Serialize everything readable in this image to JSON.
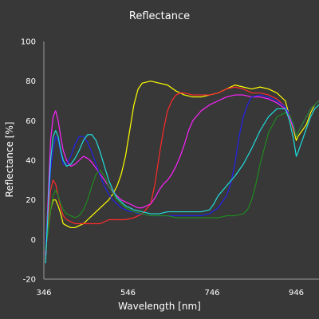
{
  "chart_data": {
    "type": "line",
    "title": "Reflectance",
    "xlabel": "Wavelength [nm]",
    "ylabel": "Reflectance [%]",
    "xlim": [
      346,
      1000
    ],
    "ylim": [
      -20,
      100
    ],
    "xticks": [
      346,
      546,
      746,
      946
    ],
    "yticks": [
      -20,
      0,
      20,
      40,
      60,
      80,
      100
    ],
    "grid": false,
    "legend": "none",
    "series": [
      {
        "color": "#ffff00",
        "x": [
          350,
          356,
          362,
          368,
          374,
          380,
          386,
          392,
          400,
          410,
          420,
          430,
          440,
          450,
          460,
          470,
          480,
          490,
          500,
          510,
          520,
          530,
          540,
          550,
          560,
          570,
          580,
          600,
          620,
          640,
          660,
          680,
          700,
          720,
          740,
          760,
          780,
          800,
          820,
          840,
          860,
          880,
          900,
          920,
          930,
          940,
          946,
          950,
          960,
          970,
          980,
          990,
          1000
        ],
        "y": [
          -5,
          5,
          15,
          20,
          20,
          17,
          13,
          8,
          7,
          6,
          6,
          7,
          8,
          10,
          12,
          14,
          16,
          18,
          20,
          23,
          27,
          33,
          42,
          55,
          68,
          76,
          79,
          80,
          79,
          78,
          75,
          73,
          72,
          72,
          73,
          74,
          76,
          78,
          77,
          76,
          77,
          76,
          74,
          70,
          62,
          55,
          50,
          52,
          55,
          58,
          64,
          68,
          70
        ]
      },
      {
        "color": "#ff2a2a",
        "x": [
          350,
          356,
          362,
          368,
          374,
          380,
          386,
          392,
          400,
          410,
          420,
          430,
          440,
          450,
          460,
          470,
          480,
          490,
          500,
          520,
          540,
          560,
          580,
          600,
          610,
          620,
          630,
          640,
          650,
          660,
          670,
          680,
          700,
          720,
          740,
          760,
          780,
          800,
          820,
          840,
          860,
          880,
          900,
          920,
          930,
          940,
          946,
          950,
          960,
          970,
          980,
          990,
          1000
        ],
        "y": [
          -10,
          10,
          25,
          30,
          28,
          22,
          16,
          12,
          10,
          9,
          8,
          8,
          8,
          8,
          8,
          8,
          8,
          9,
          10,
          10,
          10,
          11,
          13,
          18,
          28,
          42,
          55,
          65,
          70,
          73,
          74,
          74,
          73,
          73,
          73,
          74,
          76,
          77,
          76,
          74,
          74,
          73,
          71,
          67,
          62,
          56,
          52,
          54,
          58,
          62,
          66,
          68,
          70
        ]
      },
      {
        "color": "#ff22ff",
        "x": [
          350,
          356,
          362,
          368,
          374,
          380,
          386,
          392,
          400,
          410,
          420,
          430,
          440,
          450,
          460,
          470,
          480,
          490,
          500,
          510,
          520,
          530,
          540,
          550,
          560,
          570,
          580,
          590,
          600,
          610,
          620,
          630,
          640,
          650,
          660,
          670,
          680,
          690,
          700,
          720,
          740,
          760,
          780,
          800,
          820,
          840,
          860,
          880,
          900,
          920,
          930,
          940,
          946,
          950,
          960,
          970,
          980,
          990,
          1000
        ],
        "y": [
          -8,
          20,
          50,
          62,
          65,
          60,
          52,
          45,
          40,
          37,
          38,
          40,
          42,
          41,
          39,
          36,
          33,
          30,
          27,
          24,
          22,
          20,
          19,
          18,
          17,
          16,
          16,
          17,
          18,
          21,
          25,
          28,
          30,
          33,
          37,
          42,
          48,
          55,
          60,
          65,
          68,
          70,
          72,
          73,
          73,
          72,
          72,
          71,
          69,
          66,
          62,
          56,
          52,
          54,
          58,
          62,
          66,
          68,
          70
        ]
      },
      {
        "color": "#2222ee",
        "x": [
          350,
          356,
          362,
          368,
          374,
          380,
          386,
          392,
          400,
          410,
          420,
          430,
          440,
          450,
          460,
          470,
          480,
          490,
          500,
          510,
          520,
          530,
          540,
          550,
          560,
          570,
          580,
          600,
          620,
          640,
          660,
          680,
          700,
          720,
          740,
          760,
          780,
          790,
          800,
          810,
          820,
          830,
          840,
          860,
          880,
          900,
          920,
          930,
          940,
          946,
          950,
          960,
          970,
          980,
          990,
          1000
        ],
        "y": [
          -5,
          15,
          35,
          45,
          52,
          50,
          44,
          38,
          38,
          42,
          48,
          52,
          52,
          49,
          44,
          38,
          32,
          27,
          23,
          20,
          18,
          16,
          15,
          14,
          14,
          13,
          13,
          12,
          12,
          12,
          12,
          12,
          12,
          12,
          13,
          16,
          22,
          28,
          38,
          52,
          62,
          68,
          72,
          73,
          72,
          70,
          67,
          63,
          57,
          52,
          54,
          58,
          62,
          66,
          68,
          70
        ]
      },
      {
        "color": "#1f8a1f",
        "x": [
          350,
          356,
          362,
          368,
          374,
          380,
          386,
          392,
          400,
          410,
          420,
          430,
          440,
          450,
          460,
          470,
          480,
          490,
          500,
          520,
          540,
          560,
          580,
          600,
          620,
          640,
          660,
          680,
          700,
          720,
          740,
          760,
          780,
          800,
          820,
          830,
          840,
          850,
          860,
          870,
          880,
          900,
          920,
          930,
          940,
          946,
          950,
          960,
          970,
          980,
          990,
          1000
        ],
        "y": [
          -5,
          5,
          15,
          22,
          25,
          22,
          18,
          15,
          13,
          12,
          11,
          12,
          15,
          20,
          27,
          33,
          35,
          32,
          27,
          20,
          16,
          14,
          13,
          12,
          12,
          12,
          11,
          11,
          11,
          11,
          11,
          11,
          12,
          12,
          13,
          15,
          20,
          28,
          38,
          46,
          54,
          62,
          64,
          63,
          58,
          52,
          54,
          58,
          62,
          66,
          68,
          70
        ]
      },
      {
        "color": "#22dddd",
        "x": [
          350,
          356,
          362,
          368,
          374,
          380,
          386,
          392,
          400,
          410,
          420,
          430,
          440,
          450,
          460,
          470,
          480,
          490,
          500,
          510,
          520,
          530,
          540,
          550,
          560,
          580,
          600,
          620,
          640,
          660,
          680,
          700,
          720,
          740,
          750,
          760,
          780,
          800,
          820,
          840,
          860,
          880,
          900,
          920,
          930,
          940,
          946,
          950,
          960,
          970,
          980,
          990,
          1000
        ],
        "y": [
          -12,
          15,
          40,
          52,
          55,
          52,
          45,
          40,
          37,
          38,
          41,
          45,
          50,
          53,
          53,
          50,
          44,
          37,
          30,
          25,
          21,
          19,
          17,
          16,
          15,
          14,
          13,
          13,
          14,
          14,
          14,
          14,
          14,
          15,
          18,
          22,
          27,
          32,
          38,
          46,
          55,
          62,
          66,
          66,
          60,
          50,
          42,
          44,
          50,
          56,
          62,
          66,
          68
        ]
      }
    ]
  }
}
